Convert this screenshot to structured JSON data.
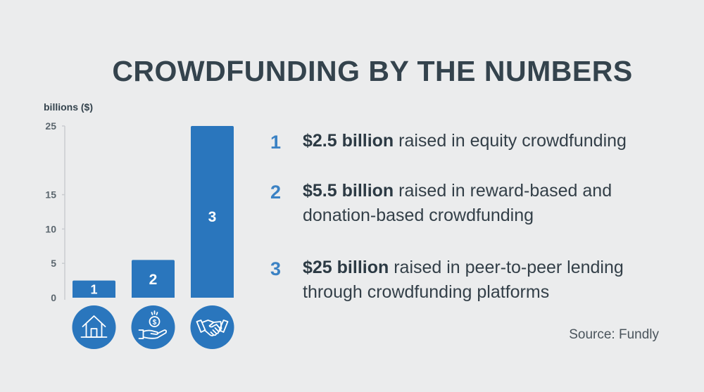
{
  "title": "CROWDFUNDING BY THE NUMBERS",
  "source": "Source: Fundly",
  "colors": {
    "bar": "#2a76bd",
    "accent": "#3b82c4",
    "text": "#333f48",
    "background": "#ebeced"
  },
  "chart_data": {
    "type": "bar",
    "ylabel": "billions ($)",
    "ylim": [
      0,
      25
    ],
    "yticks": [
      0,
      5,
      10,
      15,
      25
    ],
    "categories": [
      "1",
      "2",
      "3"
    ],
    "values": [
      2.5,
      5.5,
      25
    ],
    "icons": [
      "house-icon",
      "hand-coin-icon",
      "handshake-icon"
    ]
  },
  "items": [
    {
      "num": "1",
      "bold": "$2.5 billion",
      "text": " raised in equity crowdfunding"
    },
    {
      "num": "2",
      "bold": "$5.5 billion",
      "text": " raised in reward-based and donation-based crowdfunding"
    },
    {
      "num": "3",
      "bold": "$25 billion",
      "text": " raised in peer-to-peer lending through crowdfunding platforms"
    }
  ]
}
